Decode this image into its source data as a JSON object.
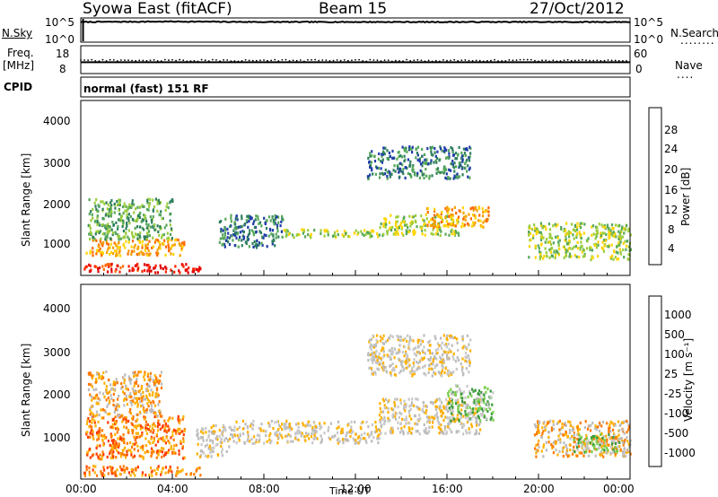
{
  "header": {
    "title": "Syowa East (fitACF)",
    "beam": "Beam 15",
    "date": "27/Oct/2012"
  },
  "nsky_panel": {
    "left_label": "N.Sky",
    "left_ticks": [
      "10^5",
      "10^0"
    ],
    "right_label": "N.Search",
    "right_ticks": [
      "10^5",
      "10^0"
    ]
  },
  "freq_panel": {
    "left_label_top": "Freq.",
    "left_label_bottom": "[MHz]",
    "left_ticks": [
      "18",
      "8"
    ],
    "right_label": "Nave",
    "right_ticks": [
      "60",
      "0"
    ]
  },
  "cpid_panel": {
    "label": "CPID",
    "text": "normal (fast) 151 RF"
  },
  "x_axis": {
    "label": "Time UT",
    "ticks": [
      "00:00",
      "04:00",
      "08:00",
      "12:00",
      "16:00",
      "20:00",
      "00:00"
    ]
  },
  "power_panel": {
    "ylabel": "Slant Range [km]",
    "yticks": [
      "4000",
      "3000",
      "2000",
      "1000"
    ],
    "colorbar_label": "Power [dB]",
    "colorbar_ticks": [
      "28",
      "24",
      "20",
      "16",
      "12",
      "8",
      "4"
    ],
    "colors": [
      "#0000ff",
      "#1f3ca8",
      "#2e7f5c",
      "#56a85a",
      "#9acd3c",
      "#ffd400",
      "#f5a000",
      "#ff6a00",
      "#ff2000",
      "#e00000"
    ]
  },
  "velocity_panel": {
    "ylabel": "Slant Range [km]",
    "yticks": [
      "4000",
      "3000",
      "2000",
      "1000"
    ],
    "colorbar_label": "Velocity [m s⁻¹]",
    "colorbar_ticks": [
      "1000",
      "500",
      "100",
      "25",
      "-25",
      "-100",
      "-500",
      "-1000"
    ],
    "colors": [
      "#1a2bd8",
      "#1e6e8c",
      "#3c9a3c",
      "#7ad04a",
      "#c8c8c8",
      "#bcbcbc",
      "#ffb000",
      "#ff7a00",
      "#ff3c00",
      "#e80000"
    ]
  },
  "chart_data": [
    {
      "type": "line",
      "title": "N.Sky / N.Search",
      "x": [
        "00:00",
        "04:00",
        "08:00",
        "12:00",
        "16:00",
        "20:00",
        "00:00"
      ],
      "ylim_log10": [
        0,
        5
      ],
      "series": [
        {
          "name": "N.Sky",
          "values_log10": [
            4.3,
            4.4,
            4.3,
            4.3,
            4.3,
            4.3,
            4.3
          ]
        }
      ]
    },
    {
      "type": "line",
      "title": "Freq. / Nave",
      "x": [
        "00:00",
        "04:00",
        "08:00",
        "12:00",
        "16:00",
        "20:00",
        "00:00"
      ],
      "series": [
        {
          "name": "Freq. [MHz]",
          "values": [
            12,
            12,
            12,
            12,
            12,
            12,
            12
          ],
          "ylim": [
            8,
            18
          ]
        },
        {
          "name": "Nave",
          "values": [
            28,
            28,
            28,
            28,
            28,
            28,
            28
          ],
          "ylim": [
            0,
            60
          ]
        }
      ]
    },
    {
      "type": "heatmap",
      "title": "Power [dB]",
      "xlabel": "Time UT",
      "ylabel": "Slant Range [km]",
      "xlim_hours": [
        0,
        24
      ],
      "ylim_km": [
        180,
        4500
      ],
      "zlim": [
        0,
        30
      ],
      "regions": [
        {
          "t0": 0.1,
          "t1": 2.5,
          "r0": 300,
          "r1": 500,
          "value": 26
        },
        {
          "t0": 2.5,
          "t1": 5.2,
          "r0": 280,
          "r1": 500,
          "value": 28
        },
        {
          "t0": 0.2,
          "t1": 4.5,
          "r0": 700,
          "r1": 1100,
          "value": 18
        },
        {
          "t0": 0.3,
          "t1": 4.0,
          "r0": 1100,
          "r1": 2100,
          "value": 10
        },
        {
          "t0": 6.0,
          "t1": 8.8,
          "r0": 900,
          "r1": 1700,
          "value": 8
        },
        {
          "t0": 8.8,
          "t1": 13.0,
          "r0": 1150,
          "r1": 1350,
          "value": 12
        },
        {
          "t0": 13.0,
          "t1": 16.5,
          "r0": 1200,
          "r1": 1700,
          "value": 14
        },
        {
          "t0": 15.0,
          "t1": 17.8,
          "r0": 1400,
          "r1": 1900,
          "value": 20
        },
        {
          "t0": 12.5,
          "t1": 17.0,
          "r0": 2600,
          "r1": 3400,
          "value": 6
        },
        {
          "t0": 19.5,
          "t1": 24.0,
          "r0": 600,
          "r1": 1500,
          "value": 14
        }
      ]
    },
    {
      "type": "heatmap",
      "title": "Velocity [m s⁻¹]",
      "xlabel": "Time UT",
      "ylabel": "Slant Range [km]",
      "xlim_hours": [
        0,
        24
      ],
      "ylim_km": [
        180,
        4500
      ],
      "zlim": [
        -1000,
        1000
      ],
      "regions": [
        {
          "t0": 0.1,
          "t1": 5.2,
          "r0": 280,
          "r1": 500,
          "value": -400
        },
        {
          "t0": 0.2,
          "t1": 4.5,
          "r0": 650,
          "r1": 1600,
          "value": -500
        },
        {
          "t0": 0.3,
          "t1": 3.5,
          "r0": 1600,
          "r1": 2600,
          "value": -300
        },
        {
          "t0": 5.0,
          "t1": 6.5,
          "r0": 700,
          "r1": 1400,
          "value": -120
        },
        {
          "t0": 6.5,
          "t1": 13.0,
          "r0": 1000,
          "r1": 1500,
          "value": 0
        },
        {
          "t0": 13.0,
          "t1": 17.5,
          "r0": 1200,
          "r1": 2000,
          "value": 0
        },
        {
          "t0": 12.5,
          "t1": 17.0,
          "r0": 2500,
          "r1": 3400,
          "value": -50
        },
        {
          "t0": 16.0,
          "t1": 18.0,
          "r0": 1500,
          "r1": 2300,
          "value": 400
        },
        {
          "t0": 19.8,
          "t1": 24.0,
          "r0": 700,
          "r1": 1500,
          "value": -200
        },
        {
          "t0": 21.5,
          "t1": 23.5,
          "r0": 800,
          "r1": 1200,
          "value": 300
        }
      ]
    }
  ]
}
